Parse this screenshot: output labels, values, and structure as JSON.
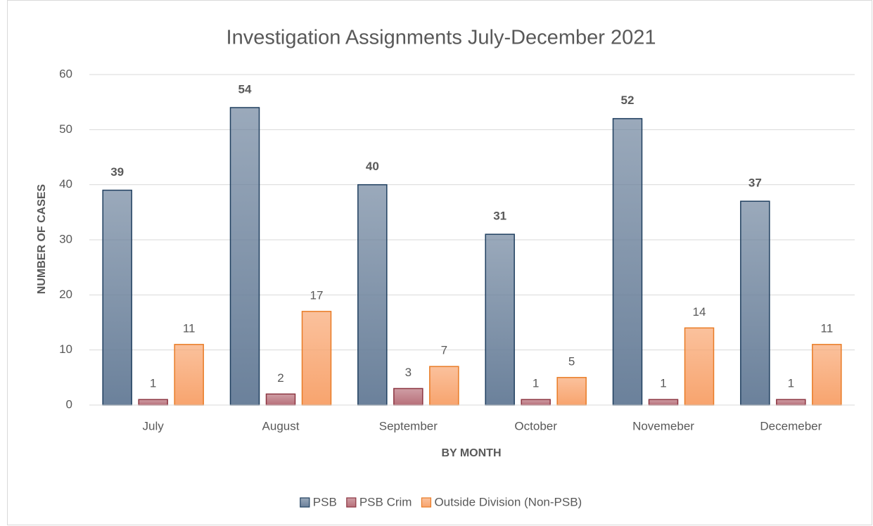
{
  "chart_data": {
    "type": "bar",
    "title": "Investigation Assignments July-December 2021",
    "xlabel": "BY MONTH",
    "ylabel": "NUMBER OF CASES",
    "categories": [
      "July",
      "August",
      "September",
      "October",
      "Novemeber",
      "Decemeber"
    ],
    "series": [
      {
        "name": "PSB",
        "color": "#6b819b",
        "edgecolor": "#1f3f5f",
        "values": [
          39,
          54,
          40,
          31,
          52,
          37
        ]
      },
      {
        "name": "PSB Crim",
        "color": "#b8707a",
        "edgecolor": "#8c3541",
        "values": [
          1,
          2,
          3,
          1,
          1,
          1
        ]
      },
      {
        "name": "Outside Division (Non-PSB)",
        "color": "#f8a46e",
        "edgecolor": "#e97b25",
        "values": [
          11,
          17,
          7,
          5,
          14,
          11
        ]
      }
    ],
    "ylim": [
      0,
      60
    ],
    "yticks": [
      0,
      10,
      20,
      30,
      40,
      50,
      60
    ],
    "grid": true,
    "legend": "bottom"
  }
}
